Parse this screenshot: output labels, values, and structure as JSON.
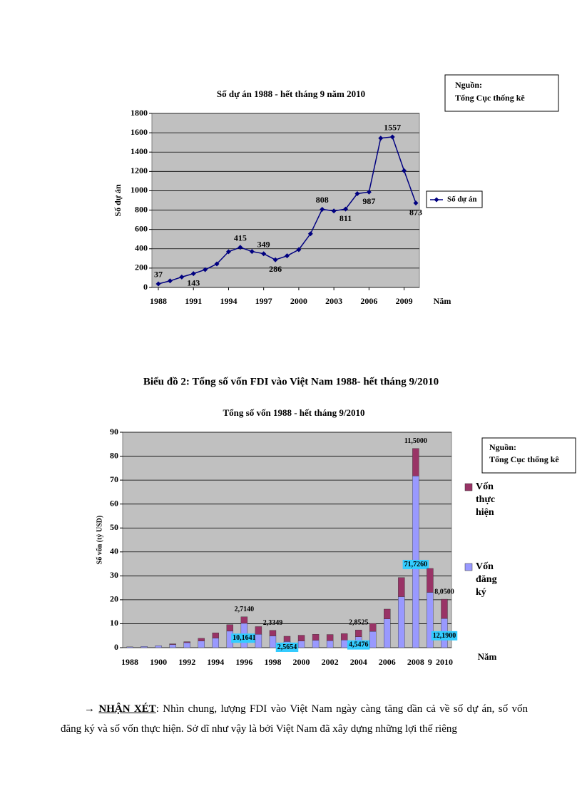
{
  "chart_data": [
    {
      "type": "line",
      "title": "Số dự án 1988 - hết tháng 9 năm 2010",
      "ylabel": "Số dự án",
      "xlabel": "Năm",
      "x": [
        1988,
        1989,
        1990,
        1991,
        1992,
        1993,
        1994,
        1995,
        1996,
        1997,
        1998,
        1999,
        2000,
        2001,
        2002,
        2003,
        2004,
        2005,
        2006,
        2007,
        2008,
        2009,
        2010
      ],
      "xlim": [
        1988,
        2010
      ],
      "xticks": [
        1988,
        1991,
        1994,
        1997,
        2000,
        2003,
        2006,
        2009
      ],
      "ylim": [
        0,
        1800
      ],
      "yticks": [
        0,
        200,
        400,
        600,
        800,
        1000,
        1200,
        1400,
        1600,
        1800
      ],
      "grid": true,
      "legend": "right",
      "series": [
        {
          "name": "Số dự án",
          "color": "#000080",
          "values": [
            37,
            68,
            108,
            143,
            184,
            243,
            370,
            415,
            372,
            349,
            286,
            327,
            391,
            555,
            808,
            791,
            811,
            970,
            987,
            1544,
            1557,
            1208,
            873
          ],
          "value_labels": [
            "37",
            null,
            null,
            "143",
            null,
            null,
            null,
            "415",
            null,
            "349",
            "286",
            null,
            null,
            null,
            "808",
            null,
            "811",
            null,
            "987",
            null,
            "1557",
            null,
            "873"
          ]
        }
      ]
    },
    {
      "type": "bar",
      "stacked": true,
      "title": "Tổng số vốn 1988 - hết tháng 9/2010",
      "ylabel": "Số vốn (tỷ USD)",
      "xlabel": "Năm",
      "categories": [
        "1988",
        null,
        "1900",
        null,
        "1992",
        null,
        "1994",
        null,
        "1996",
        null,
        "1998",
        null,
        "2000",
        null,
        "2002",
        null,
        "2004",
        null,
        "2006",
        null,
        "2008",
        "9",
        "2010"
      ],
      "ylim": [
        0,
        90
      ],
      "yticks": [
        0,
        10,
        20,
        30,
        40,
        50,
        60,
        70,
        80,
        90
      ],
      "grid": true,
      "legend": "right",
      "series": [
        {
          "name": "Vốn đăng ký",
          "color": "#9999ff",
          "label_background": "#33ccff",
          "values": [
            0.34,
            0.53,
            0.8,
            1.3,
            2.1,
            2.8,
            4.0,
            6.9,
            10.1641,
            5.6,
            4.9,
            2.5654,
            2.8,
            3.1,
            2.9,
            3.2,
            4.5476,
            6.8,
            12.0,
            21.3,
            71.726,
            23.1,
            12.19
          ],
          "value_labels": [
            null,
            null,
            null,
            null,
            null,
            null,
            null,
            null,
            "10,1641",
            null,
            null,
            "2,5654",
            null,
            null,
            null,
            null,
            "4,5476",
            null,
            null,
            null,
            "71,7260",
            null,
            "12,1900"
          ]
        },
        {
          "name": "Vốn thực hiện",
          "color": "#993366",
          "values": [
            0,
            0,
            0,
            0.3,
            0.4,
            1.1,
            2.2,
            2.7,
            2.714,
            3.2,
            2.3349,
            2.2,
            2.4,
            2.5,
            2.6,
            2.65,
            2.8525,
            3.3,
            4.1,
            8.0,
            11.5,
            10.0,
            8.05
          ],
          "value_labels": [
            null,
            null,
            null,
            null,
            null,
            null,
            null,
            null,
            "2,7140",
            null,
            "2,3349",
            null,
            null,
            null,
            null,
            null,
            "2,8525",
            null,
            null,
            null,
            "11,5000",
            null,
            "8,0500"
          ]
        }
      ]
    }
  ],
  "sources": [
    {
      "label": "Nguồn:",
      "text": "Tổng Cục thống kê"
    },
    {
      "label": "Nguồn:",
      "text": "Tổng Cục thống kê"
    }
  ],
  "caption": "Biểu đồ 2: Tổng số vốn FDI vào Việt Nam 1988- hết tháng 9/2010",
  "paragraph": {
    "marker": "→ ",
    "heading": "NHẬN XÉT",
    "text": ": Nhìn chung, lượng FDI vào Việt Nam ngày càng tăng dần cả về số dự án, số vốn đăng ký và số vốn thực hiện. Sở dĩ như vậy là bởi Việt Nam đã xây dựng những lợi thế riêng"
  }
}
